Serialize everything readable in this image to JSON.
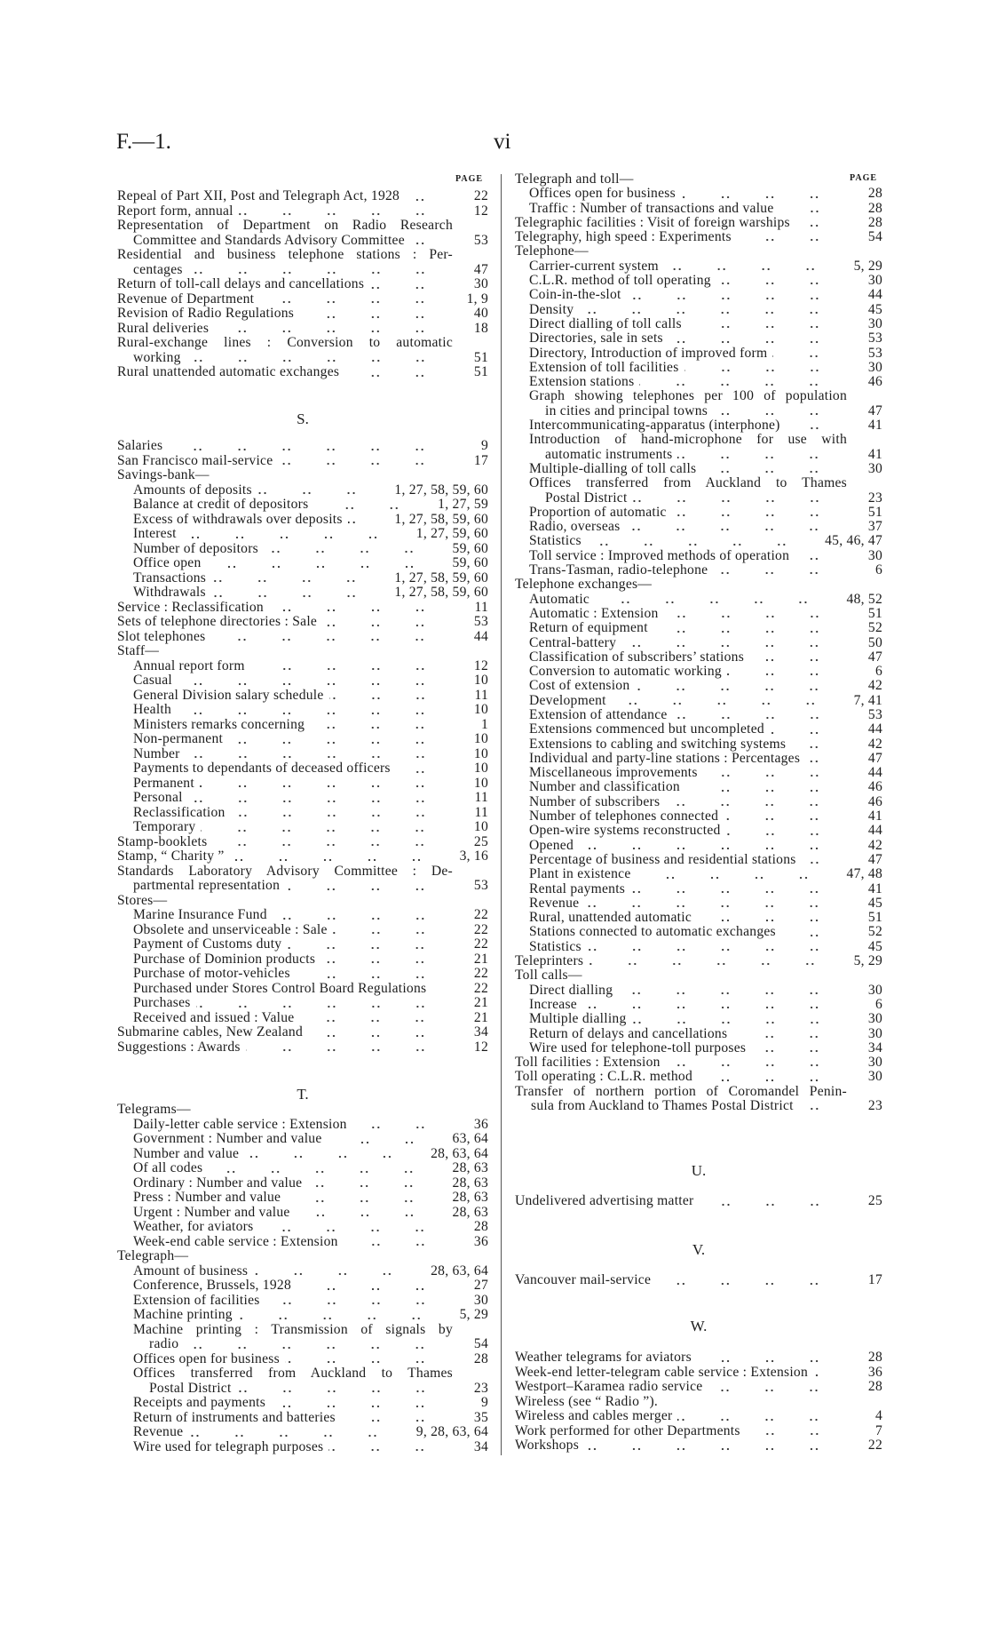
{
  "header": {
    "document_code": "F.—1.",
    "page_number": "vi",
    "page_column_label": "PAGE"
  },
  "left": {
    "sections": [
      {
        "letter": "",
        "entries": [
          {
            "text": "Repeal of Part XII, Post and Telegraph Act, 1928",
            "page": "22"
          },
          {
            "text": "Report form, annual",
            "page": "12"
          },
          {
            "lines": [
              "Representation of Department on Radio Research",
              "Committee and Standards Advisory Committee"
            ],
            "page": "53"
          },
          {
            "lines": [
              "Residential and business telephone stations : Per-",
              "centages"
            ],
            "page": "47"
          },
          {
            "text": "Return of toll-call delays and cancellations",
            "page": "30"
          },
          {
            "text": "Revenue of Department",
            "page": "1, 9"
          },
          {
            "text": "Revision of Radio Regulations",
            "page": "40"
          },
          {
            "text": "Rural deliveries",
            "page": "18"
          },
          {
            "lines": [
              "Rural-exchange lines : Conversion to automatic",
              "working"
            ],
            "page": "51"
          },
          {
            "text": "Rural unattended automatic exchanges",
            "page": "51"
          }
        ]
      },
      {
        "letter": "S.",
        "entries": [
          {
            "text": "Salaries",
            "page": "9"
          },
          {
            "text": "San Francisco mail-service",
            "page": "17"
          },
          {
            "text": "Savings-bank—",
            "children": [
              {
                "text": "Amounts of deposits",
                "page": "1, 27, 58, 59, 60"
              },
              {
                "text": "Balance at credit of depositors",
                "page": "1, 27, 59"
              },
              {
                "text": "Excess of withdrawals over deposits",
                "page": "1, 27, 58, 59, 60"
              },
              {
                "text": "Interest",
                "page": "1, 27, 59, 60"
              },
              {
                "text": "Number of depositors",
                "page": "59, 60"
              },
              {
                "text": "Office open",
                "page": "59, 60"
              },
              {
                "text": "Transactions",
                "page": "1, 27, 58, 59, 60"
              },
              {
                "text": "Withdrawals",
                "page": "1, 27, 58, 59, 60"
              }
            ]
          },
          {
            "text": "Service : Reclassification",
            "page": "11"
          },
          {
            "text": "Sets of telephone directories : Sale",
            "page": "53"
          },
          {
            "text": "Slot telephones",
            "page": "44"
          },
          {
            "text": "Staff—",
            "children": [
              {
                "text": "Annual report form",
                "page": "12"
              },
              {
                "text": "Casual",
                "page": "10"
              },
              {
                "text": "General Division salary schedule",
                "page": "11"
              },
              {
                "text": "Health",
                "page": "10"
              },
              {
                "text": "Ministers remarks concerning",
                "page": "1"
              },
              {
                "text": "Non-permanent",
                "page": "10"
              },
              {
                "text": "Number",
                "page": "10"
              },
              {
                "text": "Payments to dependants of deceased officers",
                "page": "10"
              },
              {
                "text": "Permanent",
                "page": "10"
              },
              {
                "text": "Personal",
                "page": "11"
              },
              {
                "text": "Reclassification",
                "page": "11"
              },
              {
                "text": "Temporary",
                "page": "10"
              }
            ]
          },
          {
            "text": "Stamp-booklets",
            "page": "25"
          },
          {
            "text": "Stamp, “ Charity ”",
            "page": "3, 16"
          },
          {
            "lines": [
              "Standards Laboratory Advisory Committee : De-",
              "partmental representation"
            ],
            "page": "53"
          },
          {
            "text": "Stores—",
            "children": [
              {
                "text": "Marine Insurance Fund",
                "page": "22"
              },
              {
                "text": "Obsolete and unserviceable : Sale",
                "page": "22"
              },
              {
                "text": "Payment of Customs duty",
                "page": "22"
              },
              {
                "text": "Purchase of Dominion products",
                "page": "21"
              },
              {
                "text": "Purchase of motor-vehicles",
                "page": "22"
              },
              {
                "text": "Purchased under Stores Control Board Regulations",
                "page": "22"
              },
              {
                "text": "Purchases",
                "page": "21"
              },
              {
                "text": "Received and issued : Value",
                "page": "21"
              }
            ]
          },
          {
            "text": "Submarine cables, New Zealand",
            "page": "34"
          },
          {
            "text": "Suggestions : Awards",
            "page": "12"
          }
        ]
      },
      {
        "letter": "T.",
        "entries": [
          {
            "text": "Telegrams—",
            "children": [
              {
                "text": "Daily-letter cable service : Extension",
                "page": "36"
              },
              {
                "text": "Government : Number and value",
                "page": "63, 64"
              },
              {
                "text": "Number and value",
                "page": "28, 63, 64"
              },
              {
                "text": "Of all codes",
                "page": "28, 63"
              },
              {
                "text": "Ordinary : Number and value",
                "page": "28, 63"
              },
              {
                "text": "Press : Number and value",
                "page": "28, 63"
              },
              {
                "text": "Urgent : Number and value",
                "page": "28, 63"
              },
              {
                "text": "Weather, for aviators",
                "page": "28"
              },
              {
                "text": "Week-end cable service : Extension",
                "page": "36"
              }
            ]
          },
          {
            "text": "Telegraph—",
            "children": [
              {
                "text": "Amount of business",
                "page": "28, 63, 64"
              },
              {
                "text": "Conference, Brussels, 1928",
                "page": "27"
              },
              {
                "text": "Extension of facilities",
                "page": "30"
              },
              {
                "text": "Machine printing",
                "page": "5, 29"
              },
              {
                "lines": [
                  "Machine printing : Transmission of signals by",
                  "radio"
                ],
                "page": "54"
              },
              {
                "text": "Offices open for business",
                "page": "28"
              },
              {
                "lines": [
                  "Offices transferred from Auckland to Thames",
                  "Postal District"
                ],
                "page": "23"
              },
              {
                "text": "Receipts and payments",
                "page": "9"
              },
              {
                "text": "Return of instruments and batteries",
                "page": "35"
              },
              {
                "text": "Revenue",
                "page": "9, 28, 63, 64"
              },
              {
                "text": "Wire used for telegraph purposes",
                "page": "34"
              }
            ]
          }
        ]
      }
    ]
  },
  "right": {
    "sections": [
      {
        "letter": "",
        "entries": [
          {
            "text": "Telegraph and toll—",
            "children": [
              {
                "text": "Offices open for business",
                "page": "28"
              },
              {
                "text": "Traffic : Number of transactions and value",
                "page": "28"
              }
            ]
          },
          {
            "text": "Telegraphic facilities : Visit of foreign warships",
            "page": "28"
          },
          {
            "text": "Telegraphy, high speed : Experiments",
            "page": "54"
          },
          {
            "text": "Telephone—",
            "children": [
              {
                "text": "Carrier-current system",
                "page": "5, 29"
              },
              {
                "text": "C.L.R. method of toll operating",
                "page": "30"
              },
              {
                "text": "Coin-in-the-slot",
                "page": "44"
              },
              {
                "text": "Density",
                "page": "45"
              },
              {
                "text": "Direct dialling of toll calls",
                "page": "30"
              },
              {
                "text": "Directories, sale in sets",
                "page": "53"
              },
              {
                "text": "Directory, Introduction of improved form",
                "page": "53"
              },
              {
                "text": "Extension of toll facilities",
                "page": "30"
              },
              {
                "text": "Extension stations",
                "page": "46"
              },
              {
                "lines": [
                  "Graph showing telephones per 100 of population",
                  "in cities and principal towns"
                ],
                "page": "47"
              },
              {
                "text": "Intercommunicating-apparatus (interphone)",
                "page": "41"
              },
              {
                "lines": [
                  "Introduction of hand-microphone for use with",
                  "automatic instruments"
                ],
                "page": "41"
              },
              {
                "text": "Multiple-dialling of toll calls",
                "page": "30"
              },
              {
                "lines": [
                  "Offices transferred from Auckland to Thames",
                  "Postal District"
                ],
                "page": "23"
              },
              {
                "text": "Proportion of automatic",
                "page": "51"
              },
              {
                "text": "Radio, overseas",
                "page": "37"
              },
              {
                "text": "Statistics",
                "page": "45, 46, 47"
              },
              {
                "text": "Toll service : Improved methods of operation",
                "page": "30"
              },
              {
                "text": "Trans-Tasman, radio-telephone",
                "page": "6"
              }
            ]
          },
          {
            "text": "Telephone exchanges—",
            "children": [
              {
                "text": "Automatic",
                "page": "48, 52"
              },
              {
                "text": "Automatic : Extension",
                "page": "51"
              },
              {
                "text": "Return of equipment",
                "page": "52"
              },
              {
                "text": "Central-battery",
                "page": "50"
              },
              {
                "text": "Classification of subscribers’ stations",
                "page": "47"
              },
              {
                "text": "Conversion to automatic working",
                "page": "6"
              },
              {
                "text": "Cost of extension",
                "page": "42"
              },
              {
                "text": "Development",
                "page": "7, 41"
              },
              {
                "text": "Extension of attendance",
                "page": "53"
              },
              {
                "text": "Extensions commenced but uncompleted",
                "page": "44"
              },
              {
                "text": "Extensions to cabling and switching systems",
                "page": "42"
              },
              {
                "text": "Individual and party-line stations : Percentages",
                "page": "47"
              },
              {
                "text": "Miscellaneous improvements",
                "page": "44"
              },
              {
                "text": "Number and classification",
                "page": "46"
              },
              {
                "text": "Number of subscribers",
                "page": "46"
              },
              {
                "text": "Number of telephones connected",
                "page": "41"
              },
              {
                "text": "Open-wire systems reconstructed",
                "page": "44"
              },
              {
                "text": "Opened",
                "page": "42"
              },
              {
                "text": "Percentage of business and residential stations",
                "page": "47"
              },
              {
                "text": "Plant in existence",
                "page": "47, 48"
              },
              {
                "text": "Rental payments",
                "page": "41"
              },
              {
                "text": "Revenue",
                "page": "45"
              },
              {
                "text": "Rural, unattended automatic",
                "page": "51"
              },
              {
                "text": "Stations connected to automatic exchanges",
                "page": "52"
              },
              {
                "text": "Statistics",
                "page": "45"
              }
            ]
          },
          {
            "text": "Teleprinters",
            "page": "5, 29"
          },
          {
            "text": "Toll calls—",
            "children": [
              {
                "text": "Direct dialling",
                "page": "30"
              },
              {
                "text": "Increase",
                "page": "6"
              },
              {
                "text": "Multiple dialling",
                "page": "30"
              },
              {
                "text": "Return of delays and cancellations",
                "page": "30"
              },
              {
                "text": "Wire used for telephone-toll purposes",
                "page": "34"
              }
            ]
          },
          {
            "text": "Toll facilities : Extension",
            "page": "30"
          },
          {
            "text": "Toll operating : C.L.R. method",
            "page": "30"
          },
          {
            "lines": [
              "Transfer of northern portion of Coromandel Penin-",
              "sula from Auckland to Thames Postal District"
            ],
            "page": "23"
          }
        ]
      },
      {
        "letter": "U.",
        "entries": [
          {
            "text": "Undelivered advertising matter",
            "page": "25"
          }
        ]
      },
      {
        "letter": "V.",
        "entries": [
          {
            "text": "Vancouver mail-service",
            "page": "17"
          }
        ]
      },
      {
        "letter": "W.",
        "entries": [
          {
            "text": "Weather telegrams for aviators",
            "page": "28"
          },
          {
            "text": "Week-end letter-telegram cable service : Extension",
            "page": "36"
          },
          {
            "text": "Westport–Karamea radio service",
            "page": "28"
          },
          {
            "text": "Wireless (see “ Radio ”)."
          },
          {
            "text": "Wireless and cables merger",
            "page": "4"
          },
          {
            "text": "Work performed for other Departments",
            "page": "7"
          },
          {
            "text": "Workshops",
            "page": "22"
          }
        ]
      }
    ]
  }
}
